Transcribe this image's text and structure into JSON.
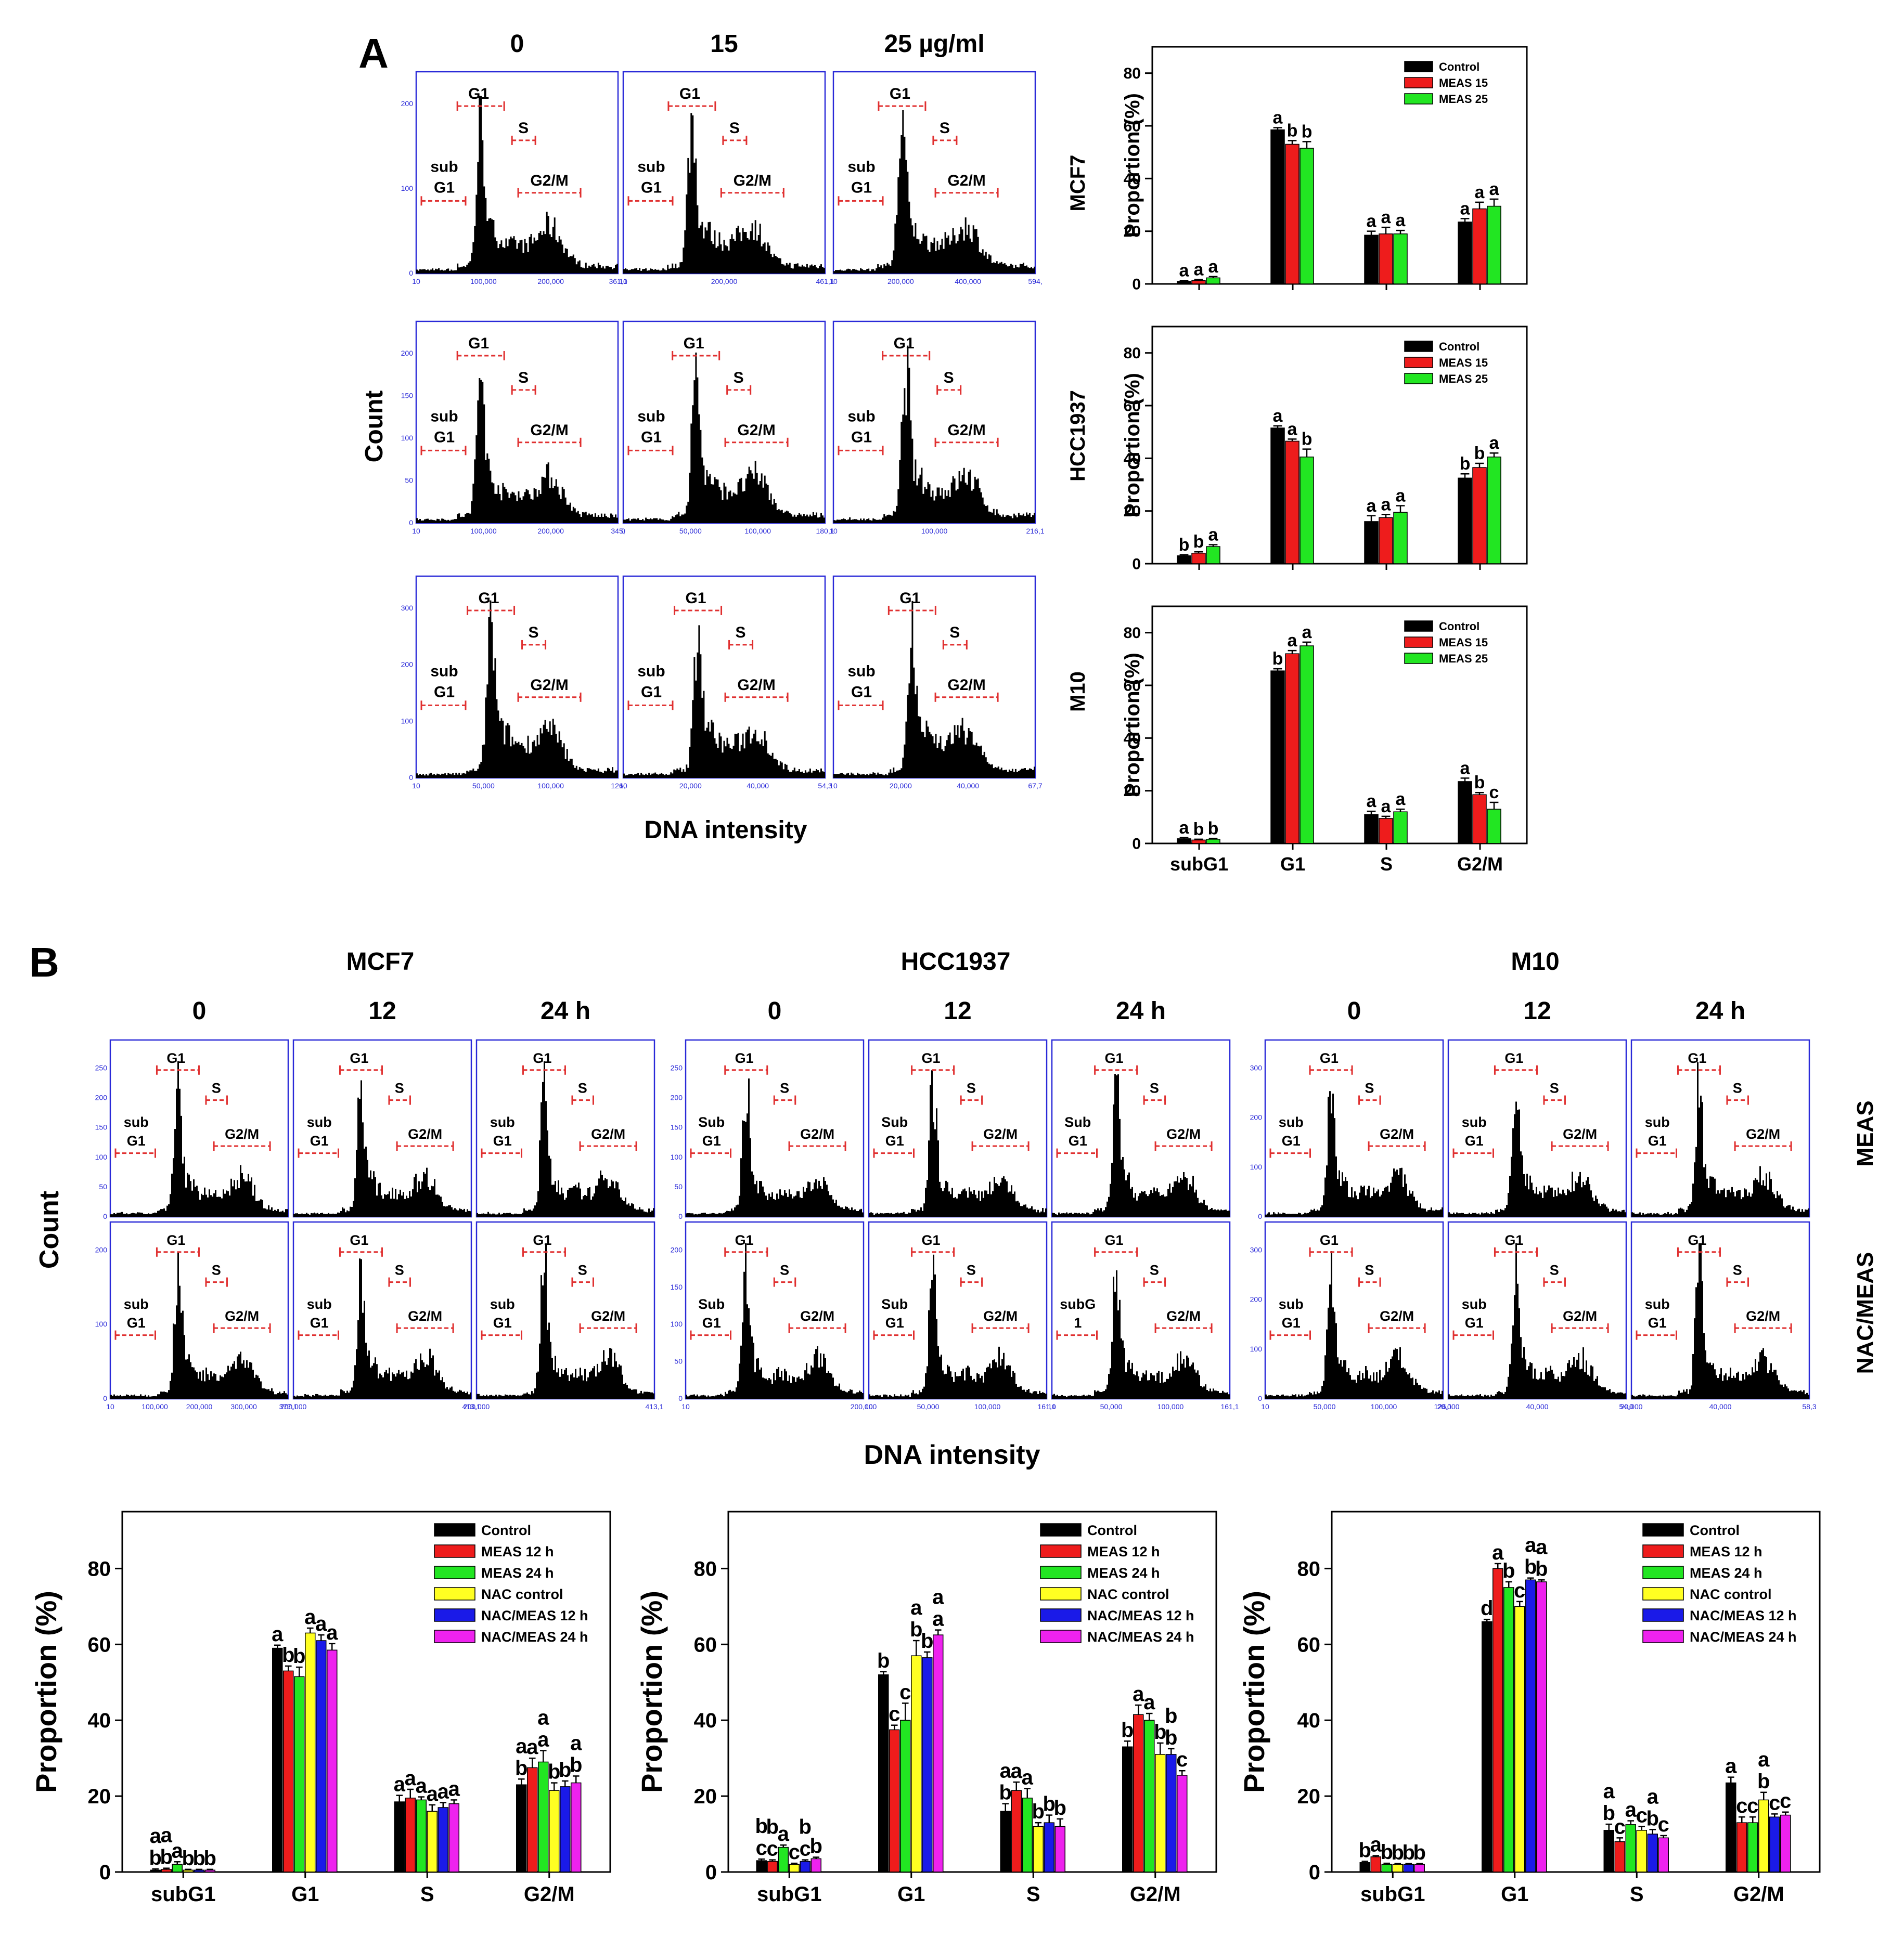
{
  "colors": {
    "black": "#000000",
    "red": "#ee1c1c",
    "green": "#22e622",
    "yellow": "#ffff22",
    "blue": "#1a1ae8",
    "magenta": "#ee22ee",
    "frame": "#2a2ad8",
    "gate": "#e03030"
  },
  "panel_a": {
    "letter": "A",
    "doses": [
      "0",
      "15",
      "25 µg/ml"
    ],
    "y_axis_label": "Count",
    "x_axis_label": "DNA intensity",
    "cell_lines": [
      "MCF7",
      "HCC1937",
      "M10"
    ],
    "rows": [
      {
        "cell": "MCF7",
        "yticks": [
          "0",
          "100",
          "200"
        ],
        "cols": [
          {
            "xticks": [
              "10",
              "100,000",
              "200,000",
              "361,1"
            ],
            "peak": 0.32,
            "g2": 0.66,
            "sub_label": "sub G1"
          },
          {
            "xticks": [
              "10",
              "200,000",
              "461,1"
            ],
            "peak": 0.34,
            "g2": 0.64,
            "sub_label": "sub G1"
          },
          {
            "xticks": [
              "10",
              "200,000",
              "400,000",
              "594,"
            ],
            "peak": 0.34,
            "g2": 0.66,
            "sub_label": "sub G1"
          }
        ]
      },
      {
        "cell": "HCC1937",
        "yticks": [
          "0",
          "50",
          "100",
          "150",
          "200"
        ],
        "cols": [
          {
            "xticks": [
              "10",
              "100,000",
              "200,000",
              "345,"
            ],
            "peak": 0.32,
            "g2": 0.66,
            "sub_label": "sub G1"
          },
          {
            "xticks": [
              "0",
              "50,000",
              "100,000",
              "180,1"
            ],
            "peak": 0.36,
            "g2": 0.66,
            "sub_label": "sub G1"
          },
          {
            "xticks": [
              "10",
              "100,000",
              "216,1"
            ],
            "peak": 0.36,
            "g2": 0.66,
            "sub_label": "sub G1"
          }
        ]
      },
      {
        "cell": "M10",
        "yticks": [
          "0",
          "100",
          "200",
          "300"
        ],
        "cols": [
          {
            "xticks": [
              "10",
              "50,000",
              "100,000",
              "126,"
            ],
            "peak": 0.37,
            "g2": 0.66,
            "sub_label": "sub G1"
          },
          {
            "xticks": [
              "10",
              "20,000",
              "40,000",
              "54,3"
            ],
            "peak": 0.37,
            "g2": 0.66,
            "sub_label": "sub G1"
          },
          {
            "xticks": [
              "10",
              "20,000",
              "40,000",
              "67,7"
            ],
            "peak": 0.39,
            "g2": 0.66,
            "sub_label": "sub G1"
          }
        ]
      }
    ]
  },
  "panel_b": {
    "letter": "B",
    "cell_lines": [
      "MCF7",
      "HCC1937",
      "M10"
    ],
    "times": [
      "0",
      "12",
      "24 h"
    ],
    "row_labels": [
      "MEAS",
      "NAC/MEAS"
    ],
    "y_axis_label": "Count",
    "x_axis_label": "DNA intensity",
    "groups": [
      {
        "yticks_top": [
          "250",
          "200",
          "150",
          "100",
          "50",
          "0"
        ],
        "yticks_bottom": [
          "0",
          "100",
          "200"
        ],
        "xticks": [
          [
            "10",
            "100,000",
            "200,000",
            "300,000",
            "377,1"
          ],
          [
            "200,000",
            "413,1"
          ],
          [
            "200,000",
            "413,1"
          ]
        ],
        "peaks": [
          0.38,
          0.38,
          0.38
        ],
        "sub_top": "sub G1",
        "sub_bottom": "sub G1"
      },
      {
        "yticks_top": [
          "250",
          "200",
          "150",
          "100",
          "50",
          "0"
        ],
        "yticks_bottom": [
          "0",
          "50",
          "100",
          "150",
          "200"
        ],
        "xticks": [
          [
            "10",
            "200,000"
          ],
          [
            "10",
            "50,000",
            "100,000",
            "161,1"
          ],
          [
            "10",
            "50,000",
            "100,000",
            "161,1"
          ]
        ],
        "peaks": [
          0.34,
          0.36,
          0.36
        ],
        "sub_top": "Sub G1",
        "sub_bottom": "Sub G1",
        "sub_bottom_last": "subG 1"
      },
      {
        "yticks_top": [
          "300",
          "200",
          "100",
          "0"
        ],
        "yticks_bottom": [
          "0",
          "100",
          "200",
          "300"
        ],
        "xticks": [
          [
            "10",
            "50,000",
            "100,000",
            "126,1"
          ],
          [
            "20,000",
            "40,000",
            "54,0"
          ],
          [
            "20,000",
            "40,000",
            "58,3"
          ]
        ],
        "peaks": [
          0.37,
          0.38,
          0.38
        ],
        "sub_top": "sub G1",
        "sub_bottom": "sub G1"
      }
    ]
  },
  "gates": {
    "g1": "G1",
    "s": "S",
    "g2m": "G2/M"
  },
  "bar_charts_a": {
    "categories": [
      "subG1",
      "G1",
      "S",
      "G2/M"
    ],
    "legend": [
      "Control",
      "MEAS 15",
      "MEAS 25"
    ],
    "ylabel": "Proportion (%)",
    "yticks": [
      "0",
      "20",
      "40",
      "60",
      "80"
    ]
  },
  "bar_charts_b": {
    "categories": [
      "subG1",
      "G1",
      "S",
      "G2/M"
    ],
    "legend": [
      "Control",
      "MEAS 12 h",
      "MEAS 24 h",
      "NAC control",
      "NAC/MEAS 12 h",
      "NAC/MEAS 24 h"
    ],
    "ylabel": "Proportion (%)",
    "yticks": [
      "0",
      "20",
      "40",
      "60",
      "80"
    ]
  },
  "chart_data": [
    {
      "type": "bar",
      "title": "MCF7",
      "categories": [
        "subG1",
        "G1",
        "S",
        "G2/M"
      ],
      "ylabel": "Proportion (%)",
      "ylim": [
        0,
        90
      ],
      "series": [
        {
          "name": "Control",
          "values": [
            1,
            58.5,
            18.5,
            23.5
          ]
        },
        {
          "name": "MEAS 15",
          "values": [
            1.3,
            53,
            19,
            28.5
          ]
        },
        {
          "name": "MEAS 25",
          "values": [
            2.3,
            51.5,
            19,
            29.5
          ]
        }
      ],
      "errors": [
        [
          0.3,
          0.8,
          1.5,
          1.3
        ],
        [
          0.4,
          1.4,
          2.5,
          2.5
        ],
        [
          0.5,
          2.5,
          1.3,
          2.7
        ]
      ],
      "letters": [
        [
          "a",
          "a",
          "a",
          "a"
        ],
        [
          "a",
          "b",
          "a",
          "a"
        ],
        [
          "a",
          "b",
          "a",
          "a"
        ]
      ]
    },
    {
      "type": "bar",
      "title": "HCC1937",
      "categories": [
        "subG1",
        "G1",
        "S",
        "G2/M"
      ],
      "ylabel": "Proportion (%)",
      "ylim": [
        0,
        90
      ],
      "series": [
        {
          "name": "Control",
          "values": [
            3,
            51.5,
            16,
            32.5
          ]
        },
        {
          "name": "MEAS 15",
          "values": [
            4,
            46.5,
            17.5,
            36.5
          ]
        },
        {
          "name": "MEAS 25",
          "values": [
            6.5,
            40.5,
            19.5,
            40.5
          ]
        }
      ],
      "errors": [
        [
          0.4,
          0.8,
          2.2,
          1.6
        ],
        [
          0.5,
          0.8,
          1.2,
          1.6
        ],
        [
          0.7,
          3,
          2.5,
          1.5
        ]
      ],
      "letters": [
        [
          "b",
          "a",
          "a",
          "b"
        ],
        [
          "b",
          "a",
          "a",
          "b"
        ],
        [
          "a",
          "b",
          "a",
          "a"
        ]
      ]
    },
    {
      "type": "bar",
      "title": "M10",
      "categories": [
        "subG1",
        "G1",
        "S",
        "G2/M"
      ],
      "ylabel": "Proportion (%)",
      "ylim": [
        0,
        90
      ],
      "series": [
        {
          "name": "Control",
          "values": [
            1.8,
            65.5,
            11,
            23.5
          ]
        },
        {
          "name": "MEAS 15",
          "values": [
            1.3,
            72,
            9.5,
            18.5
          ]
        },
        {
          "name": "MEAS 25",
          "values": [
            1.6,
            75,
            12,
            13
          ]
        }
      ],
      "errors": [
        [
          0.4,
          0.8,
          1.2,
          1.3
        ],
        [
          0.3,
          1.2,
          0.8,
          0.8
        ],
        [
          0.3,
          1.4,
          1,
          2.6
        ]
      ],
      "letters": [
        [
          "a",
          "b",
          "a",
          "a"
        ],
        [
          "b",
          "a",
          "a",
          "b"
        ],
        [
          "b",
          "a",
          "a",
          "c"
        ]
      ]
    },
    {
      "type": "bar",
      "title": "MCF7",
      "categories": [
        "subG1",
        "G1",
        "S",
        "G2/M"
      ],
      "ylabel": "Proportion (%)",
      "ylim": [
        0,
        95
      ],
      "series": [
        {
          "name": "Control",
          "values": [
            0.5,
            59,
            18.5,
            23
          ]
        },
        {
          "name": "MEAS 12 h",
          "values": [
            0.7,
            53,
            19.5,
            27.5
          ]
        },
        {
          "name": "MEAS 24 h",
          "values": [
            2,
            51.5,
            19,
            29
          ]
        },
        {
          "name": "NAC control",
          "values": [
            0.5,
            63,
            16,
            21.5
          ]
        },
        {
          "name": "NAC/MEAS 12 h",
          "values": [
            0.5,
            61,
            17,
            22.5
          ]
        },
        {
          "name": "NAC/MEAS 24 h",
          "values": [
            0.5,
            58.5,
            18,
            23.5
          ]
        }
      ],
      "errors": [
        [
          0.3,
          0.8,
          1.7,
          1.5
        ],
        [
          0.3,
          1.3,
          2.3,
          2.5
        ],
        [
          0.7,
          2.5,
          0.8,
          3
        ],
        [
          0.2,
          1.3,
          1.7,
          2
        ],
        [
          0.2,
          1.5,
          1.3,
          1.5
        ],
        [
          0.2,
          1.7,
          1,
          1.8
        ]
      ],
      "letters": [
        [
          "b",
          "a",
          "a",
          "b"
        ],
        [
          "b",
          "b",
          "a",
          "a"
        ],
        [
          "a",
          "b",
          "a",
          "a"
        ],
        [
          "b",
          "a",
          "a",
          "b"
        ],
        [
          "b",
          "a",
          "a",
          "b"
        ],
        [
          "b",
          "a",
          "a",
          "b"
        ]
      ],
      "top_letters": [
        [
          "a",
          "",
          "",
          "a"
        ],
        [
          "a",
          "",
          "",
          ""
        ],
        [
          "",
          "",
          "",
          "a"
        ],
        [
          "",
          "",
          "",
          ""
        ],
        [
          "",
          "",
          "",
          ""
        ],
        [
          "",
          "",
          "",
          "a"
        ]
      ]
    },
    {
      "type": "bar",
      "title": "HCC1937",
      "categories": [
        "subG1",
        "G1",
        "S",
        "G2/M"
      ],
      "ylabel": "Proportion (%)",
      "ylim": [
        0,
        95
      ],
      "series": [
        {
          "name": "Control",
          "values": [
            3,
            52,
            16,
            33
          ]
        },
        {
          "name": "MEAS 12 h",
          "values": [
            2.8,
            37.5,
            21.5,
            41.5
          ]
        },
        {
          "name": "MEAS 24 h",
          "values": [
            6.5,
            40,
            19.5,
            40
          ]
        },
        {
          "name": "NAC control",
          "values": [
            2,
            57,
            12,
            31
          ]
        },
        {
          "name": "NAC/MEAS 12 h",
          "values": [
            2.8,
            56.5,
            13,
            31
          ]
        },
        {
          "name": "NAC/MEAS 24 h",
          "values": [
            3.5,
            62.5,
            12,
            25.5
          ]
        }
      ],
      "errors": [
        [
          0.4,
          0.8,
          2,
          1.5
        ],
        [
          0.4,
          1.2,
          2.2,
          2.5
        ],
        [
          0.6,
          4.5,
          2.5,
          1.8
        ],
        [
          0.3,
          4,
          1,
          3
        ],
        [
          0.4,
          1.5,
          2,
          1.5
        ],
        [
          0.4,
          1.3,
          2,
          1.2
        ]
      ],
      "letters": [
        [
          "c",
          "b",
          "b",
          "b"
        ],
        [
          "c",
          "c",
          "a",
          "a"
        ],
        [
          "a",
          "c",
          "a",
          "a"
        ],
        [
          "c",
          "b",
          "b",
          "b"
        ],
        [
          "c",
          "b",
          "b",
          "b"
        ],
        [
          "b",
          "a",
          "b",
          "c"
        ]
      ],
      "top_letters": [
        [
          "b",
          "",
          "a",
          ""
        ],
        [
          "b",
          "",
          "",
          ""
        ],
        [
          "",
          "",
          "",
          ""
        ],
        [
          "",
          "a",
          "",
          ""
        ],
        [
          "b",
          "",
          "",
          "b"
        ],
        [
          "",
          "a",
          "",
          ""
        ]
      ]
    },
    {
      "type": "bar",
      "title": "M10",
      "categories": [
        "subG1",
        "G1",
        "S",
        "G2/M"
      ],
      "ylabel": "Proportion (%)",
      "ylim": [
        0,
        95
      ],
      "series": [
        {
          "name": "Control",
          "values": [
            2.5,
            66,
            11,
            23.5
          ]
        },
        {
          "name": "MEAS 12 h",
          "values": [
            4,
            80,
            8,
            13
          ]
        },
        {
          "name": "MEAS 24 h",
          "values": [
            2,
            75,
            12.5,
            13
          ]
        },
        {
          "name": "NAC control",
          "values": [
            2,
            70,
            11,
            19
          ]
        },
        {
          "name": "NAC/MEAS 12 h",
          "values": [
            2,
            77,
            10,
            14.5
          ]
        },
        {
          "name": "NAC/MEAS 24 h",
          "values": [
            2,
            76.5,
            9,
            15
          ]
        }
      ],
      "errors": [
        [
          0.3,
          0.6,
          1.6,
          1.5
        ],
        [
          0.3,
          1.3,
          1,
          1.5
        ],
        [
          0.3,
          1.5,
          1,
          1.5
        ],
        [
          0.2,
          1.3,
          1,
          2
        ],
        [
          0.2,
          0.5,
          1.2,
          0.8
        ],
        [
          0.2,
          0.5,
          0.6,
          0.8
        ]
      ],
      "letters": [
        [
          "b",
          "d",
          "b",
          "a"
        ],
        [
          "a",
          "a",
          "c",
          "c"
        ],
        [
          "b",
          "b",
          "a",
          "c"
        ],
        [
          "b",
          "c",
          "c",
          "b"
        ],
        [
          "b",
          "b",
          "b",
          "c"
        ],
        [
          "b",
          "b",
          "c",
          "c"
        ]
      ],
      "top_letters": [
        [
          "",
          "",
          "a",
          ""
        ],
        [
          "",
          "",
          "",
          ""
        ],
        [
          "",
          "",
          "",
          ""
        ],
        [
          "",
          "",
          "",
          "a"
        ],
        [
          "",
          "a",
          "a",
          ""
        ],
        [
          "",
          "a",
          "",
          ""
        ]
      ]
    }
  ]
}
